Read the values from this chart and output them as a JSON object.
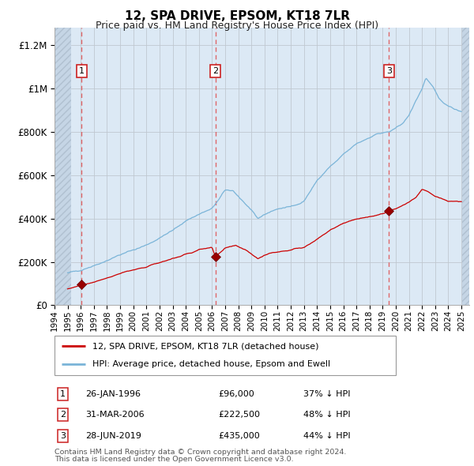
{
  "title": "12, SPA DRIVE, EPSOM, KT18 7LR",
  "subtitle": "Price paid vs. HM Land Registry's House Price Index (HPI)",
  "hpi_label": "HPI: Average price, detached house, Epsom and Ewell",
  "price_label": "12, SPA DRIVE, EPSOM, KT18 7LR (detached house)",
  "footer1": "Contains HM Land Registry data © Crown copyright and database right 2024.",
  "footer2": "This data is licensed under the Open Government Licence v3.0.",
  "transactions": [
    {
      "num": 1,
      "date": "26-JAN-1996",
      "price": "£96,000",
      "pct": "37% ↓ HPI",
      "x_year": 1996.07,
      "y_val": 96000
    },
    {
      "num": 2,
      "date": "31-MAR-2006",
      "price": "£222,500",
      "pct": "48% ↓ HPI",
      "x_year": 2006.25,
      "y_val": 222500
    },
    {
      "num": 3,
      "date": "28-JUN-2019",
      "price": "£435,000",
      "pct": "44% ↓ HPI",
      "x_year": 2019.49,
      "y_val": 435000
    }
  ],
  "hpi_color": "#7ab4d8",
  "price_color": "#cc0000",
  "dashed_color": "#e05050",
  "bg_color": "#dce9f5",
  "grid_color": "#c0c8d0",
  "ylim": [
    0,
    1280000
  ],
  "yticks": [
    0,
    200000,
    400000,
    600000,
    800000,
    1000000,
    1200000
  ],
  "xlim_start": 1994.0,
  "xlim_end": 2025.6,
  "hatch_end": 1995.25,
  "hatch_start_right": 2025.05
}
